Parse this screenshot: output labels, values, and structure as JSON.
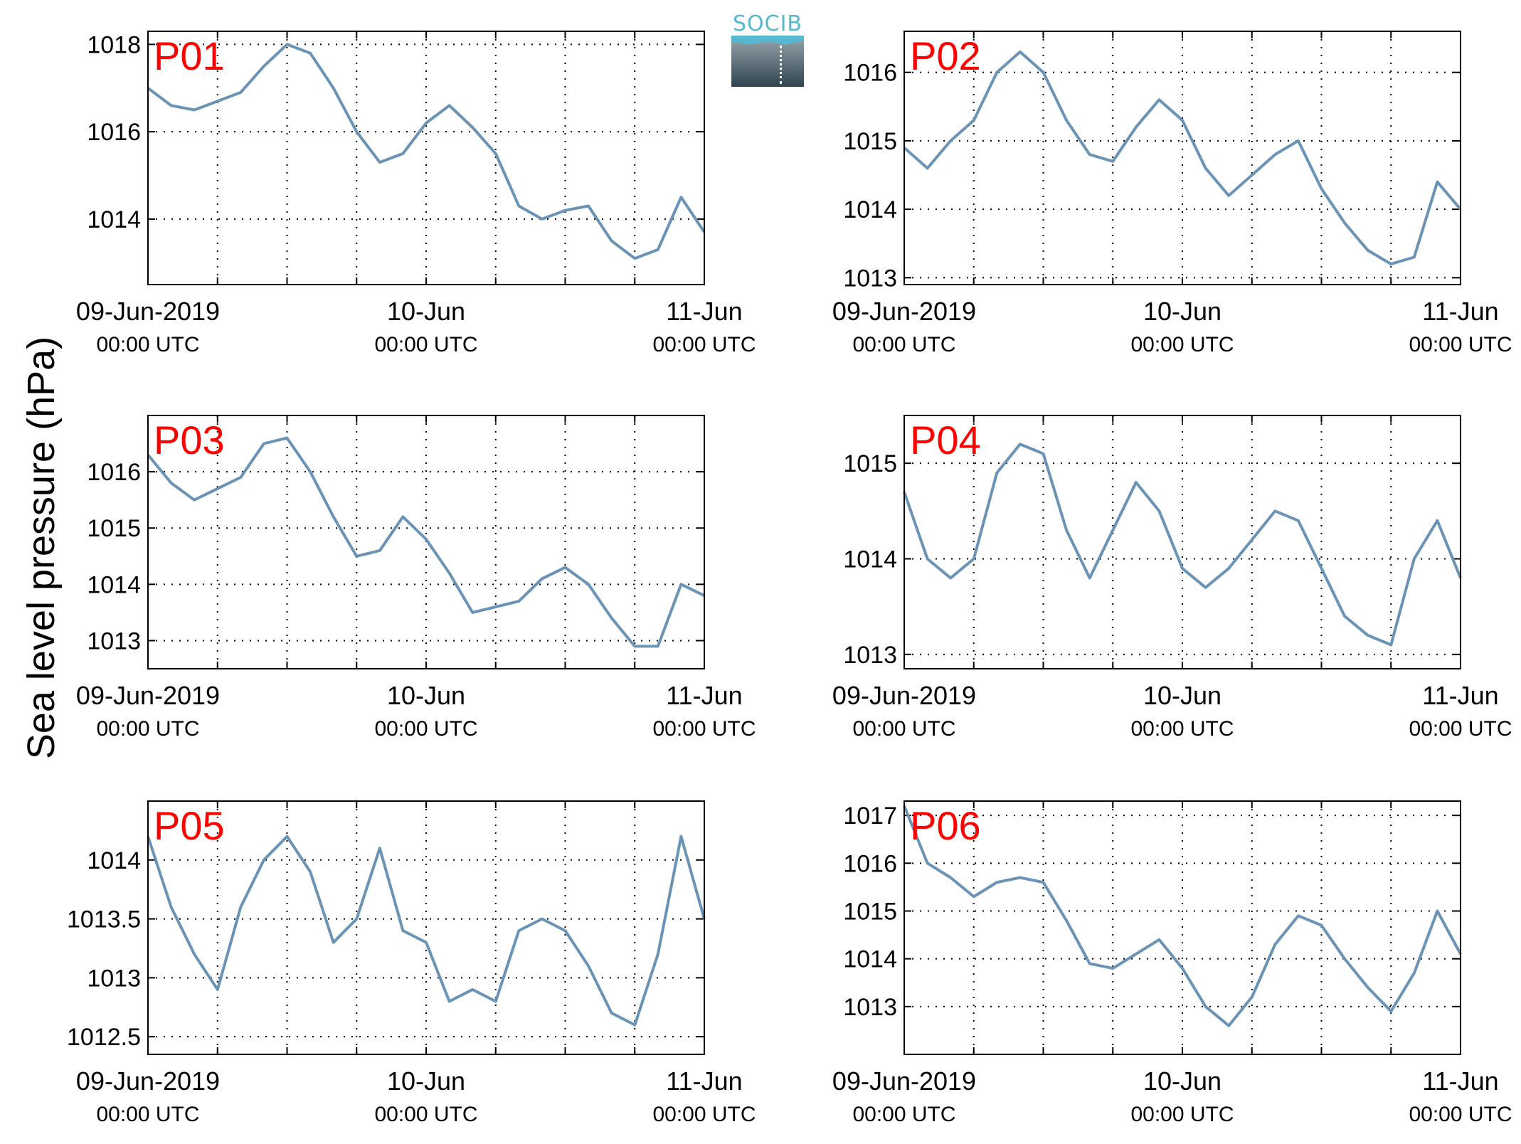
{
  "figure": {
    "ylabel": "Sea level pressure (hPa)",
    "logo_text": "SOCIB",
    "line_color": "#6a93b5",
    "label_color": "#ff0000"
  },
  "chart_data": [
    {
      "type": "line",
      "label": "P01",
      "x": [
        0,
        2,
        4,
        6,
        8,
        10,
        12,
        14,
        16,
        18,
        20,
        22,
        24,
        26,
        28,
        30,
        32,
        34,
        36,
        38,
        40,
        42,
        44,
        46,
        48
      ],
      "y": [
        1017.0,
        1016.6,
        1016.5,
        1016.7,
        1016.9,
        1017.5,
        1018.0,
        1017.8,
        1017.0,
        1016.0,
        1015.3,
        1015.5,
        1016.2,
        1016.6,
        1016.1,
        1015.5,
        1014.3,
        1014.0,
        1014.2,
        1014.3,
        1013.5,
        1013.1,
        1013.3,
        1014.5,
        1013.7
      ],
      "ylim": [
        1012.5,
        1018.3
      ],
      "yticks": [
        1014,
        1016,
        1018
      ],
      "yticklabels": [
        "1014",
        "1016",
        "1018"
      ]
    },
    {
      "type": "line",
      "label": "P02",
      "x": [
        0,
        2,
        4,
        6,
        8,
        10,
        12,
        14,
        16,
        18,
        20,
        22,
        24,
        26,
        28,
        30,
        32,
        34,
        36,
        38,
        40,
        42,
        44,
        46,
        48
      ],
      "y": [
        1014.9,
        1014.6,
        1015.0,
        1015.3,
        1016.0,
        1016.3,
        1016.0,
        1015.3,
        1014.8,
        1014.7,
        1015.2,
        1015.6,
        1015.3,
        1014.6,
        1014.2,
        1014.5,
        1014.8,
        1015.0,
        1014.3,
        1013.8,
        1013.4,
        1013.2,
        1013.3,
        1014.4,
        1014.0
      ],
      "ylim": [
        1012.9,
        1016.6
      ],
      "yticks": [
        1013,
        1014,
        1015,
        1016
      ],
      "yticklabels": [
        "1013",
        "1014",
        "1015",
        "1016"
      ]
    },
    {
      "type": "line",
      "label": "P03",
      "x": [
        0,
        2,
        4,
        6,
        8,
        10,
        12,
        14,
        16,
        18,
        20,
        22,
        24,
        26,
        28,
        30,
        32,
        34,
        36,
        38,
        40,
        42,
        44,
        46,
        48
      ],
      "y": [
        1016.3,
        1015.8,
        1015.5,
        1015.7,
        1015.9,
        1016.5,
        1016.6,
        1016.0,
        1015.2,
        1014.5,
        1014.6,
        1015.2,
        1014.8,
        1014.2,
        1013.5,
        1013.6,
        1013.7,
        1014.1,
        1014.3,
        1014.0,
        1013.4,
        1012.9,
        1012.9,
        1014.0,
        1013.8
      ],
      "ylim": [
        1012.5,
        1017.0
      ],
      "yticks": [
        1013,
        1014,
        1015,
        1016
      ],
      "yticklabels": [
        "1013",
        "1014",
        "1015",
        "1016"
      ]
    },
    {
      "type": "line",
      "label": "P04",
      "x": [
        0,
        2,
        4,
        6,
        8,
        10,
        12,
        14,
        16,
        18,
        20,
        22,
        24,
        26,
        28,
        30,
        32,
        34,
        36,
        38,
        40,
        42,
        44,
        46,
        48
      ],
      "y": [
        1014.7,
        1014.0,
        1013.8,
        1014.0,
        1014.9,
        1015.2,
        1015.1,
        1014.3,
        1013.8,
        1014.3,
        1014.8,
        1014.5,
        1013.9,
        1013.7,
        1013.9,
        1014.2,
        1014.5,
        1014.4,
        1013.9,
        1013.4,
        1013.2,
        1013.1,
        1014.0,
        1014.4,
        1013.8
      ],
      "ylim": [
        1012.85,
        1015.5
      ],
      "yticks": [
        1013,
        1014,
        1015
      ],
      "yticklabels": [
        "1013",
        "1014",
        "1015"
      ]
    },
    {
      "type": "line",
      "label": "P05",
      "x": [
        0,
        2,
        4,
        6,
        8,
        10,
        12,
        14,
        16,
        18,
        20,
        22,
        24,
        26,
        28,
        30,
        32,
        34,
        36,
        38,
        40,
        42,
        44,
        46,
        48
      ],
      "y": [
        1014.2,
        1013.6,
        1013.2,
        1012.9,
        1013.6,
        1014.0,
        1014.2,
        1013.9,
        1013.3,
        1013.5,
        1014.1,
        1013.4,
        1013.3,
        1012.8,
        1012.9,
        1012.8,
        1013.4,
        1013.5,
        1013.4,
        1013.1,
        1012.7,
        1012.6,
        1013.2,
        1014.2,
        1013.5
      ],
      "ylim": [
        1012.35,
        1014.5
      ],
      "yticks": [
        1012.5,
        1013,
        1013.5,
        1014
      ],
      "yticklabels": [
        "1012.5",
        "1013",
        "1013.5",
        "1014"
      ]
    },
    {
      "type": "line",
      "label": "P06",
      "x": [
        0,
        2,
        4,
        6,
        8,
        10,
        12,
        14,
        16,
        18,
        20,
        22,
        24,
        26,
        28,
        30,
        32,
        34,
        36,
        38,
        40,
        42,
        44,
        46,
        48
      ],
      "y": [
        1017.2,
        1016.0,
        1015.7,
        1015.3,
        1015.6,
        1015.7,
        1015.6,
        1014.8,
        1013.9,
        1013.8,
        1014.1,
        1014.4,
        1013.8,
        1013.0,
        1012.6,
        1013.2,
        1014.3,
        1014.9,
        1014.7,
        1014.0,
        1013.4,
        1012.9,
        1013.7,
        1015.0,
        1014.1
      ],
      "ylim": [
        1012.0,
        1017.3
      ],
      "yticks": [
        1013,
        1014,
        1015,
        1016,
        1017
      ],
      "yticklabels": [
        "1013",
        "1014",
        "1015",
        "1016",
        "1017"
      ]
    }
  ],
  "xaxis": {
    "xlim": [
      0,
      48
    ],
    "major_ticks": [
      0,
      24,
      48
    ],
    "minor_ticks": [
      6,
      12,
      18,
      30,
      36,
      42
    ],
    "ticklabels": [
      {
        "x": 0,
        "line1": "09-Jun-2019",
        "line2": "00:00 UTC"
      },
      {
        "x": 24,
        "line1": "10-Jun",
        "line2": "00:00 UTC"
      },
      {
        "x": 48,
        "line1": "11-Jun",
        "line2": "00:00 UTC"
      }
    ]
  }
}
